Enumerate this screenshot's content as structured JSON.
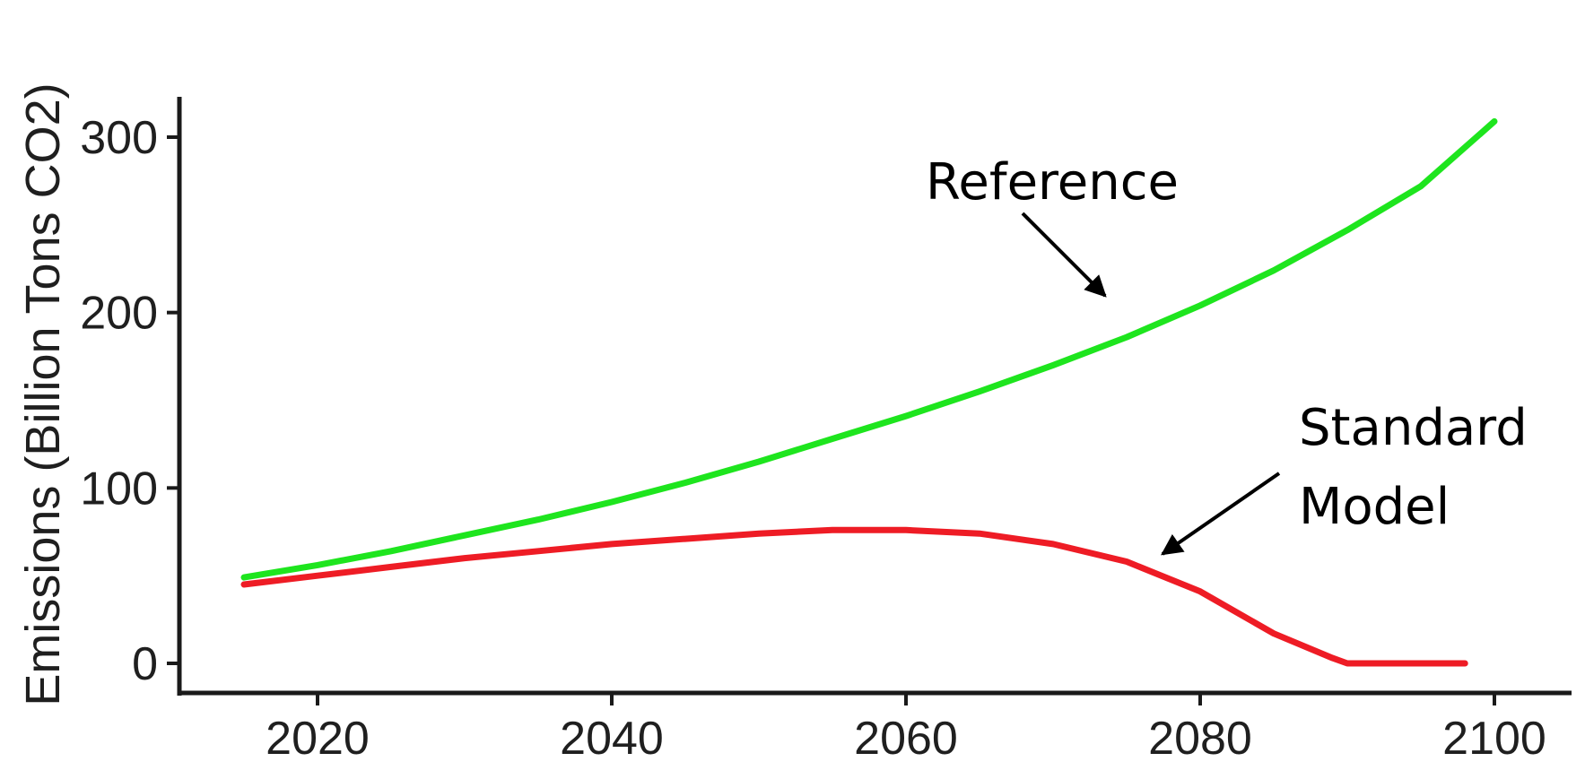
{
  "chart_data": {
    "type": "line",
    "title": "",
    "xlabel": "",
    "ylabel": "Emissions (Billion Tons CO2)",
    "xlim": [
      2010,
      2106
    ],
    "ylim": [
      0,
      325
    ],
    "x_ticks": [
      "2020",
      "2040",
      "2060",
      "2080",
      "2100"
    ],
    "y_ticks": [
      "0",
      "100",
      "200",
      "300"
    ],
    "grid": false,
    "legend": "none",
    "series": [
      {
        "name": "Reference",
        "color": "#1ee51e",
        "x": [
          2015,
          2020,
          2025,
          2030,
          2035,
          2040,
          2045,
          2050,
          2055,
          2060,
          2065,
          2070,
          2075,
          2080,
          2085,
          2090,
          2095,
          2100
        ],
        "y": [
          49,
          56,
          64,
          73,
          82,
          92,
          103,
          115,
          128,
          141,
          155,
          170,
          186,
          204,
          224,
          247,
          272,
          309
        ]
      },
      {
        "name": "Standard Model",
        "color": "#ee1c25",
        "x": [
          2015,
          2020,
          2025,
          2030,
          2035,
          2040,
          2045,
          2050,
          2055,
          2060,
          2065,
          2070,
          2075,
          2080,
          2085,
          2089,
          2090,
          2095,
          2098
        ],
        "y": [
          45,
          50,
          55,
          60,
          64,
          68,
          71,
          74,
          76,
          76,
          74,
          68,
          58,
          41,
          17,
          3,
          0,
          0,
          0
        ]
      }
    ],
    "annotations": [
      {
        "label_lines": [
          "Reference"
        ],
        "series": "Reference"
      },
      {
        "label_lines": [
          "Standard",
          "Model"
        ],
        "series": "Standard Model"
      }
    ]
  }
}
